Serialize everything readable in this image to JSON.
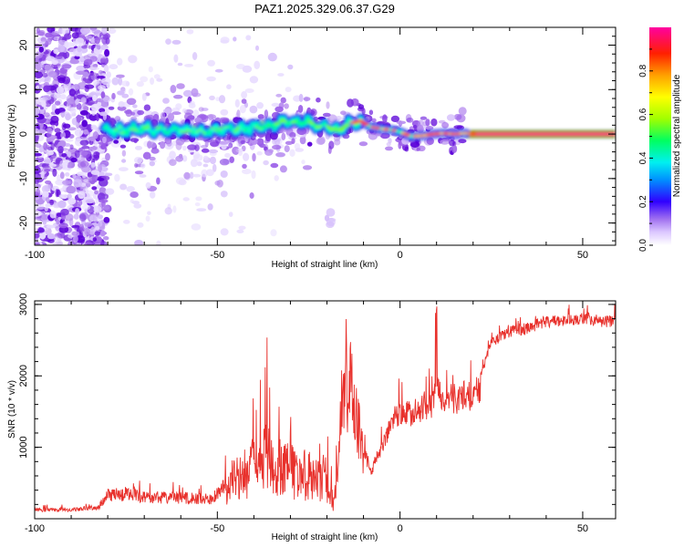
{
  "figure_title": "PAZ1.2025.329.06.37.G29",
  "chart_data": [
    {
      "type": "heatmap",
      "xlabel": "Height of straight line (km)",
      "ylabel": "Frequency (Hz)",
      "xlim": [
        -100,
        59
      ],
      "ylim": [
        -25,
        24
      ],
      "x_ticks": [
        -100,
        -50,
        0,
        50
      ],
      "x_tick_labels": [
        "-100",
        "-50",
        "0",
        "50"
      ],
      "y_ticks": [
        -20,
        -10,
        0,
        10,
        20
      ],
      "y_tick_labels": [
        "-20",
        "-10",
        "0",
        "10",
        "20"
      ],
      "colorbar": {
        "label": "Normalized spectral amplitude",
        "range": [
          0,
          1
        ],
        "ticks": [
          0.0,
          0.2,
          0.4,
          0.6,
          0.8
        ],
        "tick_labels": [
          "0.0",
          "0.2",
          "0.4",
          "0.6",
          "0.8"
        ]
      },
      "ridge_frequency": {
        "x": [
          -81,
          -75,
          -70,
          -65,
          -60,
          -55,
          -50,
          -45,
          -40,
          -35,
          -32,
          -28,
          -25,
          -22,
          -20,
          -17,
          -14,
          -11,
          -8,
          -5,
          -2,
          0,
          3,
          6,
          9,
          12,
          15,
          18,
          20,
          25,
          30,
          40,
          50,
          59
        ],
        "y": [
          0.8,
          0.9,
          1.2,
          0.8,
          1.0,
          0.6,
          0.9,
          1.1,
          1.5,
          1.8,
          3.0,
          2.5,
          2.8,
          1.5,
          1.8,
          0.6,
          2.3,
          3.0,
          1.6,
          1.2,
          0.9,
          0.5,
          -0.5,
          -0.4,
          0.0,
          0.2,
          0.0,
          0.2,
          0.1,
          0.0,
          0.0,
          0.0,
          0.0,
          0.0
        ]
      }
    },
    {
      "type": "line",
      "xlabel": "Height of straight line (km)",
      "ylabel": "SNR (10 * v/v)",
      "xlim": [
        -100,
        59
      ],
      "ylim": [
        0,
        3050
      ],
      "x_ticks": [
        -100,
        -50,
        0,
        50
      ],
      "x_tick_labels": [
        "-100",
        "-50",
        "0",
        "50"
      ],
      "y_ticks": [
        1000,
        2000,
        3000
      ],
      "y_tick_labels": [
        "1000",
        "2000",
        "3000"
      ],
      "color": "#e8312c",
      "envelope": {
        "x": [
          -100,
          -90,
          -82,
          -80,
          -75,
          -70,
          -60,
          -52,
          -50,
          -47,
          -45,
          -42,
          -38,
          -36,
          -34,
          -30,
          -25,
          -20,
          -18,
          -16,
          -14,
          -12,
          -10,
          -9,
          -8,
          -5,
          -3,
          0,
          3,
          7,
          9,
          10,
          12,
          15,
          18,
          20,
          22,
          25,
          30,
          35,
          40,
          45,
          50,
          55,
          59
        ],
        "y": [
          150,
          150,
          200,
          420,
          450,
          380,
          380,
          350,
          450,
          650,
          900,
          1000,
          1200,
          1500,
          1150,
          1050,
          1000,
          900,
          250,
          2100,
          1900,
          2000,
          1100,
          900,
          750,
          1150,
          1400,
          1700,
          1650,
          1750,
          1800,
          2300,
          1750,
          1850,
          2000,
          1850,
          2050,
          2550,
          2700,
          2750,
          2850,
          2850,
          2900,
          2850,
          2850
        ]
      }
    }
  ]
}
